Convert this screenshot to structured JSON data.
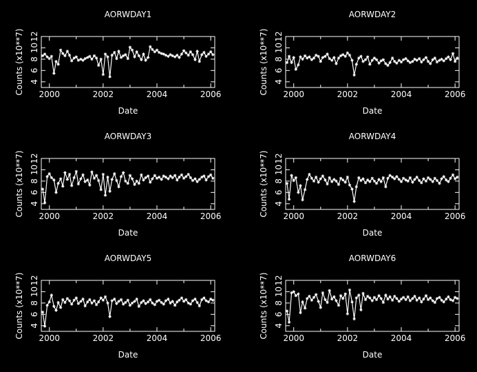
{
  "chart_data": [
    {
      "type": "line",
      "title": "AORWDAY1",
      "xlabel": "Date",
      "ylabel": "Counts (x10**7)",
      "xlim": [
        1999.7,
        2006.15
      ],
      "ylim": [
        3,
        12
      ],
      "xticks": [
        "2000",
        "2002",
        "2004",
        "2006"
      ],
      "yticks": [
        "4",
        "6",
        "8",
        "10",
        "12"
      ],
      "x": [
        1999.75,
        1999.83,
        1999.92,
        2000.0,
        2000.08,
        2000.17,
        2000.25,
        2000.33,
        2000.42,
        2000.5,
        2000.58,
        2000.67,
        2000.75,
        2000.83,
        2000.92,
        2001.0,
        2001.08,
        2001.17,
        2001.25,
        2001.33,
        2001.42,
        2001.5,
        2001.58,
        2001.67,
        2001.75,
        2001.83,
        2001.92,
        2002.0,
        2002.08,
        2002.17,
        2002.25,
        2002.33,
        2002.42,
        2002.5,
        2002.58,
        2002.67,
        2002.75,
        2002.83,
        2002.92,
        2003.0,
        2003.08,
        2003.17,
        2003.25,
        2003.33,
        2003.42,
        2003.5,
        2003.58,
        2003.67,
        2003.75,
        2003.83,
        2003.92,
        2004.0,
        2004.08,
        2004.17,
        2004.25,
        2004.33,
        2004.42,
        2004.5,
        2004.58,
        2004.67,
        2004.75,
        2004.83,
        2004.92,
        2005.0,
        2005.08,
        2005.17,
        2005.25,
        2005.33,
        2005.42,
        2005.5,
        2005.58,
        2005.67,
        2005.75,
        2005.83,
        2005.92,
        2006.0,
        2006.08
      ],
      "values": [
        8.6,
        8.9,
        8.4,
        8.1,
        8.5,
        5.5,
        7.6,
        7.1,
        9.6,
        9.0,
        8.6,
        9.4,
        8.7,
        7.7,
        8.2,
        8.4,
        7.8,
        8.0,
        7.8,
        8.1,
        8.3,
        8.5,
        8.0,
        8.6,
        8.2,
        6.9,
        8.0,
        5.3,
        8.9,
        8.4,
        4.9,
        8.7,
        9.2,
        8.1,
        9.4,
        8.3,
        8.6,
        8.8,
        8.1,
        10.1,
        9.6,
        8.4,
        9.3,
        8.6,
        7.9,
        8.9,
        7.8,
        8.3,
        10.2,
        9.7,
        9.3,
        9.6,
        9.2,
        9.0,
        8.9,
        8.7,
        8.5,
        8.8,
        8.6,
        8.4,
        8.7,
        8.3,
        8.9,
        9.5,
        9.1,
        8.7,
        9.3,
        8.8,
        7.9,
        9.4,
        7.6,
        8.8,
        9.2,
        8.5,
        8.9,
        9.3,
        8.8
      ]
    },
    {
      "type": "line",
      "title": "AORWDAY2",
      "xlabel": "Date",
      "ylabel": "Counts (x10**7)",
      "xlim": [
        1999.7,
        2006.15
      ],
      "ylim": [
        3,
        12
      ],
      "xticks": [
        "2000",
        "2002",
        "2004",
        "2006"
      ],
      "yticks": [
        "4",
        "6",
        "8",
        "10",
        "12"
      ],
      "x": [
        1999.75,
        1999.83,
        1999.92,
        2000.0,
        2000.08,
        2000.17,
        2000.25,
        2000.33,
        2000.42,
        2000.5,
        2000.58,
        2000.67,
        2000.75,
        2000.83,
        2000.92,
        2001.0,
        2001.08,
        2001.17,
        2001.25,
        2001.33,
        2001.42,
        2001.5,
        2001.58,
        2001.67,
        2001.75,
        2001.83,
        2001.92,
        2002.0,
        2002.08,
        2002.17,
        2002.25,
        2002.33,
        2002.42,
        2002.5,
        2002.58,
        2002.67,
        2002.75,
        2002.83,
        2002.92,
        2003.0,
        2003.08,
        2003.17,
        2003.25,
        2003.33,
        2003.42,
        2003.5,
        2003.58,
        2003.67,
        2003.75,
        2003.83,
        2003.92,
        2004.0,
        2004.08,
        2004.17,
        2004.25,
        2004.33,
        2004.42,
        2004.5,
        2004.58,
        2004.67,
        2004.75,
        2004.83,
        2004.92,
        2005.0,
        2005.08,
        2005.17,
        2005.25,
        2005.33,
        2005.42,
        2005.5,
        2005.58,
        2005.67,
        2005.75,
        2005.83,
        2005.92,
        2006.0,
        2006.08
      ],
      "values": [
        7.4,
        8.5,
        7.4,
        8.3,
        6.2,
        7.0,
        8.4,
        8.0,
        8.6,
        8.2,
        8.4,
        7.9,
        8.2,
        8.7,
        8.5,
        7.6,
        8.3,
        8.5,
        8.9,
        8.1,
        7.8,
        8.3,
        7.2,
        8.2,
        8.6,
        8.8,
        8.5,
        9.1,
        8.7,
        7.8,
        5.2,
        7.1,
        8.2,
        8.5,
        7.6,
        7.9,
        8.4,
        7.1,
        7.8,
        8.2,
        7.9,
        7.3,
        7.7,
        7.9,
        7.2,
        6.9,
        7.4,
        8.2,
        7.6,
        7.3,
        7.8,
        7.5,
        7.9,
        8.1,
        7.7,
        7.4,
        7.6,
        8.0,
        7.8,
        8.1,
        7.5,
        7.9,
        8.3,
        7.6,
        7.2,
        7.9,
        8.2,
        7.5,
        7.8,
        8.0,
        7.7,
        8.1,
        8.4,
        7.9,
        9.0,
        7.6,
        8.2
      ]
    },
    {
      "type": "line",
      "title": "AORWDAY3",
      "xlabel": "Date",
      "ylabel": "Counts (x10**7)",
      "xlim": [
        1999.7,
        2006.15
      ],
      "ylim": [
        3,
        12
      ],
      "xticks": [
        "2000",
        "2002",
        "2004",
        "2006"
      ],
      "yticks": [
        "4",
        "6",
        "8",
        "10",
        "12"
      ],
      "x": [
        1999.75,
        1999.83,
        1999.92,
        2000.0,
        2000.08,
        2000.17,
        2000.25,
        2000.33,
        2000.42,
        2000.5,
        2000.58,
        2000.67,
        2000.75,
        2000.83,
        2000.92,
        2001.0,
        2001.08,
        2001.17,
        2001.25,
        2001.33,
        2001.42,
        2001.5,
        2001.58,
        2001.67,
        2001.75,
        2001.83,
        2001.92,
        2002.0,
        2002.08,
        2002.17,
        2002.25,
        2002.33,
        2002.42,
        2002.5,
        2002.58,
        2002.67,
        2002.75,
        2002.83,
        2002.92,
        2003.0,
        2003.08,
        2003.17,
        2003.25,
        2003.33,
        2003.42,
        2003.5,
        2003.58,
        2003.67,
        2003.75,
        2003.83,
        2003.92,
        2004.0,
        2004.08,
        2004.17,
        2004.25,
        2004.33,
        2004.42,
        2004.5,
        2004.58,
        2004.67,
        2004.75,
        2004.83,
        2004.92,
        2005.0,
        2005.08,
        2005.17,
        2005.25,
        2005.33,
        2005.42,
        2005.5,
        2005.58,
        2005.67,
        2005.75,
        2005.83,
        2005.92,
        2006.0,
        2006.08
      ],
      "values": [
        6.6,
        4.2,
        8.8,
        9.3,
        8.6,
        8.2,
        6.0,
        7.6,
        8.4,
        7.1,
        9.5,
        8.3,
        9.2,
        7.2,
        8.6,
        9.7,
        7.5,
        8.4,
        9.1,
        7.9,
        8.2,
        7.3,
        9.6,
        8.5,
        9.0,
        8.1,
        6.5,
        9.2,
        5.5,
        8.7,
        6.2,
        8.3,
        9.3,
        8.1,
        7.0,
        8.8,
        9.5,
        8.0,
        7.6,
        9.0,
        8.4,
        7.4,
        8.0,
        7.6,
        9.1,
        8.2,
        8.6,
        8.9,
        7.8,
        8.4,
        9.0,
        8.5,
        8.7,
        8.3,
        8.9,
        8.7,
        8.4,
        8.9,
        8.6,
        9.0,
        8.2,
        8.7,
        9.1,
        8.5,
        8.8,
        9.2,
        8.6,
        8.1,
        8.4,
        7.9,
        8.3,
        8.7,
        8.9,
        8.2,
        8.8,
        9.1,
        8.5
      ]
    },
    {
      "type": "line",
      "title": "AORWDAY4",
      "xlabel": "Date",
      "ylabel": "Counts (x10**7)",
      "xlim": [
        1999.7,
        2006.15
      ],
      "ylim": [
        3,
        12
      ],
      "xticks": [
        "2000",
        "2002",
        "2004",
        "2006"
      ],
      "yticks": [
        "4",
        "6",
        "8",
        "10",
        "12"
      ],
      "x": [
        1999.75,
        1999.83,
        1999.92,
        2000.0,
        2000.08,
        2000.17,
        2000.25,
        2000.33,
        2000.42,
        2000.5,
        2000.58,
        2000.67,
        2000.75,
        2000.83,
        2000.92,
        2001.0,
        2001.08,
        2001.17,
        2001.25,
        2001.33,
        2001.42,
        2001.5,
        2001.58,
        2001.67,
        2001.75,
        2001.83,
        2001.92,
        2002.0,
        2002.08,
        2002.17,
        2002.25,
        2002.33,
        2002.42,
        2002.5,
        2002.58,
        2002.67,
        2002.75,
        2002.83,
        2002.92,
        2003.0,
        2003.08,
        2003.17,
        2003.25,
        2003.33,
        2003.42,
        2003.5,
        2003.58,
        2003.67,
        2003.75,
        2003.83,
        2003.92,
        2004.0,
        2004.08,
        2004.17,
        2004.25,
        2004.33,
        2004.42,
        2004.5,
        2004.58,
        2004.67,
        2004.75,
        2004.83,
        2004.92,
        2005.0,
        2005.08,
        2005.17,
        2005.25,
        2005.33,
        2005.42,
        2005.5,
        2005.58,
        2005.67,
        2005.75,
        2005.83,
        2005.92,
        2006.0,
        2006.08
      ],
      "values": [
        7.6,
        4.8,
        9.0,
        8.1,
        8.6,
        6.0,
        7.2,
        4.7,
        6.5,
        8.3,
        9.2,
        8.5,
        8.0,
        8.7,
        7.8,
        8.4,
        8.9,
        8.2,
        7.5,
        8.6,
        7.9,
        8.3,
        8.0,
        7.4,
        8.5,
        8.2,
        7.8,
        8.7,
        7.3,
        6.6,
        4.4,
        7.0,
        8.6,
        8.1,
        8.4,
        7.7,
        8.2,
        7.9,
        8.5,
        8.0,
        7.6,
        8.3,
        7.9,
        8.6,
        7.0,
        8.5,
        9.0,
        8.7,
        8.4,
        8.8,
        8.3,
        7.9,
        8.5,
        8.2,
        8.0,
        8.6,
        7.8,
        8.3,
        8.7,
        8.1,
        7.7,
        8.4,
        8.0,
        8.6,
        8.3,
        7.9,
        8.5,
        8.1,
        7.6,
        8.4,
        8.8,
        8.2,
        7.9,
        8.5,
        9.1,
        8.4,
        8.7
      ]
    },
    {
      "type": "line",
      "title": "AORWDAY5",
      "xlabel": "Date",
      "ylabel": "Counts (x10**7)",
      "xlim": [
        1999.7,
        2006.15
      ],
      "ylim": [
        3,
        12
      ],
      "xticks": [
        "2000",
        "2002",
        "2004",
        "2006"
      ],
      "yticks": [
        "4",
        "6",
        "8",
        "10",
        "12"
      ],
      "x": [
        1999.75,
        1999.83,
        1999.92,
        2000.0,
        2000.08,
        2000.17,
        2000.25,
        2000.33,
        2000.42,
        2000.5,
        2000.58,
        2000.67,
        2000.75,
        2000.83,
        2000.92,
        2001.0,
        2001.08,
        2001.17,
        2001.25,
        2001.33,
        2001.42,
        2001.5,
        2001.58,
        2001.67,
        2001.75,
        2001.83,
        2001.92,
        2002.0,
        2002.08,
        2002.17,
        2002.25,
        2002.33,
        2002.42,
        2002.5,
        2002.58,
        2002.67,
        2002.75,
        2002.83,
        2002.92,
        2003.0,
        2003.08,
        2003.17,
        2003.25,
        2003.33,
        2003.42,
        2003.5,
        2003.58,
        2003.67,
        2003.75,
        2003.83,
        2003.92,
        2004.0,
        2004.08,
        2004.17,
        2004.25,
        2004.33,
        2004.42,
        2004.5,
        2004.58,
        2004.67,
        2004.75,
        2004.83,
        2004.92,
        2005.0,
        2005.08,
        2005.17,
        2005.25,
        2005.33,
        2005.42,
        2005.5,
        2005.58,
        2005.67,
        2005.75,
        2005.83,
        2005.92,
        2006.0,
        2006.08
      ],
      "values": [
        6.4,
        3.9,
        7.6,
        8.2,
        9.4,
        7.4,
        6.7,
        8.1,
        7.2,
        8.6,
        8.1,
        8.8,
        8.4,
        7.8,
        8.5,
        8.9,
        7.9,
        8.3,
        8.7,
        7.5,
        8.2,
        8.6,
        8.0,
        8.4,
        7.7,
        8.2,
        8.9,
        8.5,
        9.1,
        8.0,
        5.6,
        8.4,
        8.7,
        7.9,
        8.3,
        8.6,
        7.8,
        8.1,
        8.5,
        7.6,
        8.0,
        8.3,
        8.7,
        7.4,
        8.1,
        8.4,
        7.9,
        8.2,
        8.6,
        8.0,
        7.7,
        8.3,
        8.5,
        8.1,
        7.8,
        8.4,
        8.7,
        8.0,
        8.3,
        7.6,
        8.2,
        8.5,
        8.9,
        8.3,
        8.6,
        8.0,
        7.8,
        8.4,
        8.7,
        8.1,
        7.5,
        8.6,
        8.9,
        8.4,
        8.2,
        8.7,
        8.5
      ]
    },
    {
      "type": "line",
      "title": "AORWDAY6",
      "xlabel": "Date",
      "ylabel": "Counts (x10**7)",
      "xlim": [
        1999.7,
        2006.15
      ],
      "ylim": [
        3,
        12
      ],
      "xticks": [
        "2000",
        "2002",
        "2004",
        "2006"
      ],
      "yticks": [
        "4",
        "6",
        "8",
        "10",
        "12"
      ],
      "x": [
        1999.75,
        1999.83,
        1999.92,
        2000.0,
        2000.08,
        2000.17,
        2000.25,
        2000.33,
        2000.42,
        2000.5,
        2000.58,
        2000.67,
        2000.75,
        2000.83,
        2000.92,
        2001.0,
        2001.08,
        2001.17,
        2001.25,
        2001.33,
        2001.42,
        2001.5,
        2001.58,
        2001.67,
        2001.75,
        2001.83,
        2001.92,
        2002.0,
        2002.08,
        2002.17,
        2002.25,
        2002.33,
        2002.42,
        2002.5,
        2002.58,
        2002.67,
        2002.75,
        2002.83,
        2002.92,
        2003.0,
        2003.08,
        2003.17,
        2003.25,
        2003.33,
        2003.42,
        2003.5,
        2003.58,
        2003.67,
        2003.75,
        2003.83,
        2003.92,
        2004.0,
        2004.08,
        2004.17,
        2004.25,
        2004.33,
        2004.42,
        2004.5,
        2004.58,
        2004.67,
        2004.75,
        2004.83,
        2004.92,
        2005.0,
        2005.08,
        2005.17,
        2005.25,
        2005.33,
        2005.42,
        2005.5,
        2005.58,
        2005.67,
        2005.75,
        2005.83,
        2005.92,
        2006.0,
        2006.08
      ],
      "values": [
        6.6,
        4.6,
        9.8,
        10.0,
        9.3,
        9.6,
        6.3,
        8.2,
        7.1,
        8.8,
        9.2,
        8.5,
        9.0,
        9.5,
        8.3,
        7.2,
        9.8,
        8.6,
        8.1,
        10.2,
        8.7,
        9.1,
        8.4,
        7.6,
        9.3,
        8.8,
        9.6,
        6.1,
        10.3,
        8.2,
        5.2,
        8.9,
        9.4,
        6.8,
        9.7,
        8.6,
        9.2,
        8.9,
        8.4,
        9.0,
        8.6,
        9.3,
        8.8,
        8.1,
        9.4,
        8.7,
        9.1,
        8.5,
        9.2,
        8.8,
        8.3,
        8.7,
        9.0,
        8.6,
        9.1,
        8.4,
        8.8,
        9.2,
        8.5,
        8.9,
        8.2,
        8.7,
        9.3,
        8.6,
        8.9,
        8.4,
        8.1,
        8.8,
        9.0,
        8.5,
        8.2,
        8.7,
        9.1,
        8.6,
        8.4,
        9.0,
        8.8
      ]
    }
  ]
}
